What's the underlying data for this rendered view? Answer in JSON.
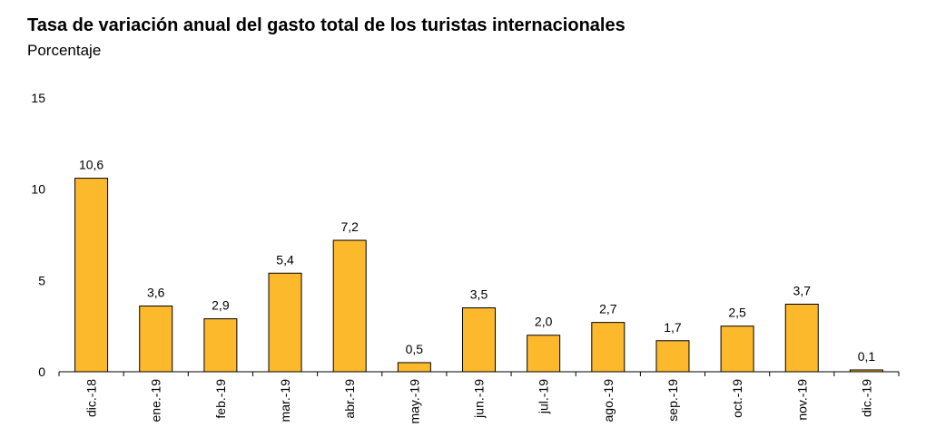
{
  "chart_data": {
    "type": "bar",
    "title": "Tasa de variación anual del gasto total de los turistas internacionales",
    "subtitle": "Porcentaje",
    "categories": [
      "dic.-18",
      "ene.-19",
      "feb.-19",
      "mar.-19",
      "abr.-19",
      "may.-19",
      "jun.-19",
      "jul.-19",
      "ago.-19",
      "sep.-19",
      "oct.-19",
      "nov.-19",
      "dic.-19"
    ],
    "values": [
      10.6,
      3.6,
      2.9,
      5.4,
      7.2,
      0.5,
      3.5,
      2.0,
      2.7,
      1.7,
      2.5,
      3.7,
      0.1
    ],
    "data_labels": [
      "10,6",
      "3,6",
      "2,9",
      "5,4",
      "7,2",
      "0,5",
      "3,5",
      "2,0",
      "2,7",
      "1,7",
      "2,5",
      "3,7",
      "0,1"
    ],
    "yticks": [
      0,
      5,
      10,
      15
    ],
    "ylim": [
      0,
      15
    ],
    "grid": false,
    "legend": "none",
    "bar_color": "#FDB92C",
    "bar_stroke": "#000000"
  }
}
